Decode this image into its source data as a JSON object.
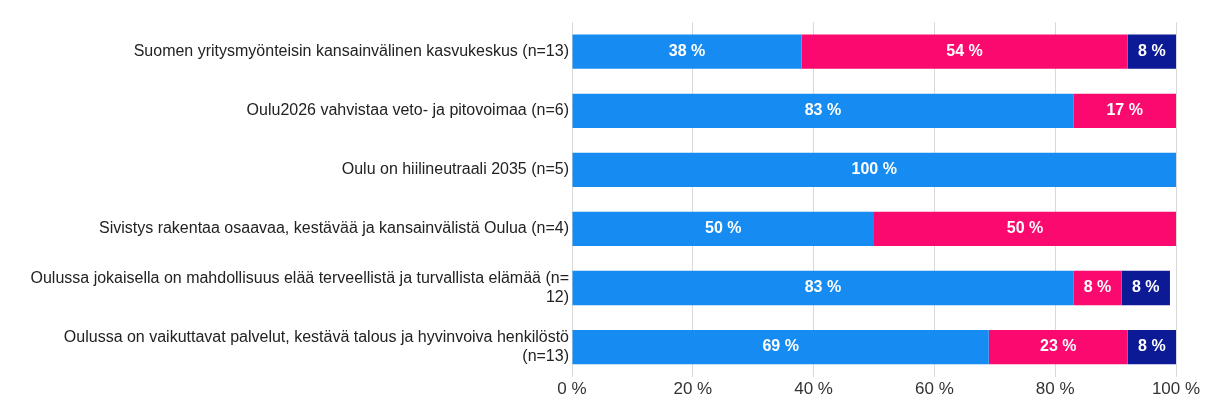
{
  "chart_data": {
    "type": "bar",
    "orientation": "horizontal",
    "stacked": true,
    "categories": [
      "Suomen yritysmyönteisin kansainvälinen kasvukeskus (n=13)",
      "Oulu2026 vahvistaa veto- ja pitovoimaa (n=6)",
      "Oulu on hiilineutraali 2035 (n=5)",
      "Sivistys rakentaa osaavaa, kestävää ja kansainvälistä Oulua (n=4)",
      "Oulussa jokaisella on mahdollisuus elää terveellistä ja turvallista elämää (n= 12)",
      "Oulussa on vaikuttavat palvelut, kestävä talous ja hyvinvoiva henkilöstö (n=13)"
    ],
    "series": [
      {
        "color": "#168cf2",
        "values": [
          38,
          83,
          100,
          50,
          83,
          69
        ],
        "value_labels": [
          "38 %",
          "83 %",
          "100 %",
          "50 %",
          "83 %",
          "69 %"
        ]
      },
      {
        "color": "#fa0a6e",
        "values": [
          54,
          17,
          null,
          50,
          8,
          23
        ],
        "value_labels": [
          "54 %",
          "17 %",
          null,
          "50 %",
          "8 %",
          "23 %"
        ]
      },
      {
        "color": "#0c1a96",
        "values": [
          8,
          null,
          null,
          null,
          8,
          8
        ],
        "value_labels": [
          "8 %",
          null,
          null,
          null,
          "8 %",
          "8 %"
        ]
      }
    ],
    "xlim": [
      0,
      100
    ],
    "xticks": [
      {
        "value": 0,
        "label": "0 %"
      },
      {
        "value": 20,
        "label": "20 %"
      },
      {
        "value": 40,
        "label": "40 %"
      },
      {
        "value": 60,
        "label": "60 %"
      },
      {
        "value": 80,
        "label": "80 %"
      },
      {
        "value": 100,
        "label": "100 %"
      }
    ],
    "grid": "x",
    "legend": false
  }
}
